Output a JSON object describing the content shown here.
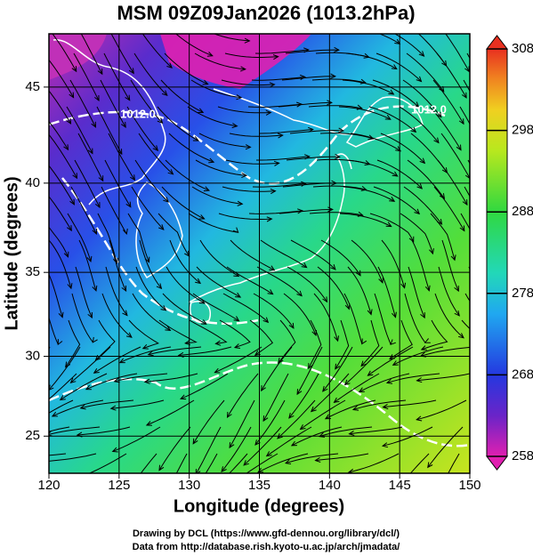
{
  "map": {
    "title": "MSM 09Z09Jan2026 (1013.2hPa)",
    "xlabel": "Longitude (degrees)",
    "ylabel": "Latitude  (degrees)",
    "projection": "mercator",
    "grid": true,
    "xlim": [
      120,
      150
    ],
    "ylim": [
      22.6,
      47.6
    ],
    "xticks": [
      120,
      125,
      130,
      135,
      140,
      145,
      150
    ],
    "yticks": [
      25,
      30,
      35,
      40,
      45
    ],
    "colorbar": {
      "lim": [
        258,
        308
      ],
      "ticks": [
        258,
        268,
        278,
        288,
        298,
        308
      ]
    },
    "contour_labels": [
      "1012.0",
      "1012.0"
    ],
    "footer": [
      "Drawing by DCL (https://www.gfd-dennou.org/library/dcl/)",
      "Data from http://database.rish.kyoto-u.ac.jp/arch/jmadata/"
    ]
  }
}
